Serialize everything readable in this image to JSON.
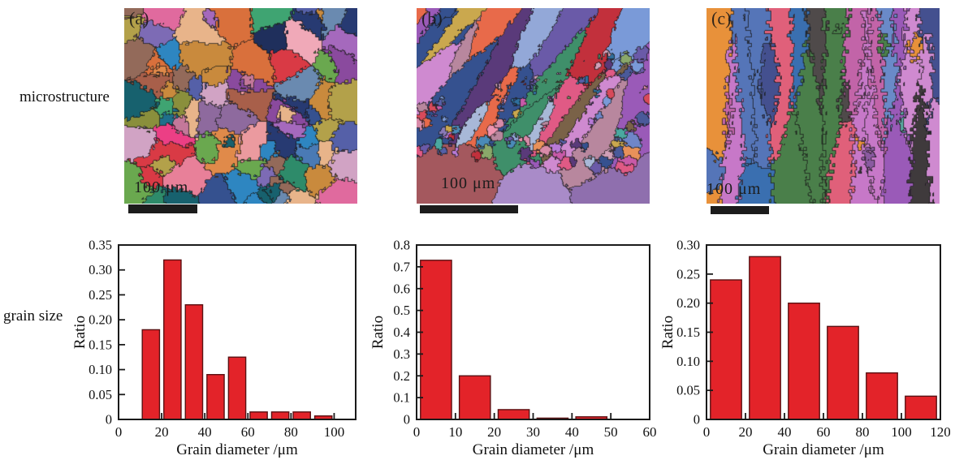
{
  "figure": {
    "row_labels": {
      "top": "microstructure",
      "bottom": "grain size"
    },
    "panels": [
      {
        "id": "a",
        "label": "(a)",
        "scale_text": "100 μm",
        "micrograph_style": "equiaxed"
      },
      {
        "id": "b",
        "label": "(b)",
        "scale_text": "100 μm",
        "micrograph_style": "bimodal-diagonal"
      },
      {
        "id": "c",
        "label": "(c)",
        "scale_text": "100 μm",
        "micrograph_style": "columnar"
      }
    ]
  },
  "colors": {
    "bar_fill": "#e32329",
    "bar_edge": "#5a1012",
    "axis": "#1a1a1a",
    "text": "#111111",
    "scale_bar": "#1c1c1c"
  },
  "palettes": {
    "a": [
      "#e06a9e",
      "#ec3f85",
      "#d93a45",
      "#c22431",
      "#e88099",
      "#eb9a9f",
      "#f0a9b8",
      "#b05a92",
      "#8a4a9e",
      "#a569bd",
      "#7d6bb5",
      "#5560a8",
      "#273a72",
      "#1f2f5c",
      "#35518f",
      "#4a7ab5",
      "#2e86c1",
      "#1f6f8b",
      "#17616e",
      "#2e8b6a",
      "#3fa472",
      "#6aa84f",
      "#8a8f3c",
      "#b3a14a",
      "#c98a3d",
      "#e08a4a",
      "#d9703c",
      "#a85f4a",
      "#936a5a",
      "#c4789a",
      "#8e6a9e",
      "#6a8ab0",
      "#d1a3c4",
      "#e8b48a"
    ],
    "b": [
      "#8a7ab8",
      "#6a5aa8",
      "#4a5a9a",
      "#35518f",
      "#7a9ad8",
      "#93a8d8",
      "#b87ad8",
      "#c85aa8",
      "#d84a5a",
      "#c2303c",
      "#e86a4a",
      "#e8915a",
      "#b8879e",
      "#d88aa8",
      "#ef94b0",
      "#5a3a7a",
      "#4a8ab8",
      "#2f6f9e",
      "#8aa86a",
      "#3f8f6a",
      "#caa84e",
      "#7a6248",
      "#a8b8d8",
      "#cf8ad0",
      "#5560a8",
      "#e05a85",
      "#6f86c9",
      "#9a5ab8",
      "#d0a0b8",
      "#4aa8a0"
    ],
    "c": [
      "#4f4a4a",
      "#3f3a3c",
      "#35996e",
      "#2e8b6a",
      "#c778c8",
      "#b858b0",
      "#cf8ad0",
      "#6a8ac8",
      "#5575b8",
      "#9a5ab8",
      "#b88ad0",
      "#c264a8",
      "#3a6fb0",
      "#2f8f5a",
      "#e8913a",
      "#44508f",
      "#59a8a0",
      "#4a7f4a",
      "#e0607a",
      "#8a5aa0"
    ]
  },
  "chart_data": [
    {
      "type": "bar",
      "panel": "a",
      "title": "",
      "xlabel": "Grain diameter /μm",
      "ylabel": "Ratio",
      "xlim": [
        0,
        110
      ],
      "ylim": [
        0,
        0.35
      ],
      "xticks": [
        0,
        20,
        40,
        60,
        80,
        100
      ],
      "xtick_labels": [
        "0",
        "20",
        "40",
        "60",
        "80",
        "100"
      ],
      "yticks": [
        0,
        0.05,
        0.1,
        0.15,
        0.2,
        0.25,
        0.3,
        0.35
      ],
      "ytick_labels": [
        "0",
        "0.05",
        "0.10",
        "0.15",
        "0.20",
        "0.25",
        "0.30",
        "0.35"
      ],
      "bin_width": 10,
      "bin_starts": [
        10,
        20,
        30,
        40,
        50,
        60,
        70,
        80,
        90
      ],
      "values": [
        0.18,
        0.32,
        0.23,
        0.09,
        0.125,
        0.015,
        0.015,
        0.015,
        0.007
      ],
      "grid": false,
      "legend": false
    },
    {
      "type": "bar",
      "panel": "b",
      "title": "",
      "xlabel": "Grain diameter /μm",
      "ylabel": "Ratio",
      "xlim": [
        0,
        60
      ],
      "ylim": [
        0,
        0.8
      ],
      "xticks": [
        0,
        10,
        20,
        30,
        40,
        50,
        60
      ],
      "xtick_labels": [
        "0",
        "10",
        "20",
        "30",
        "40",
        "50",
        "60"
      ],
      "yticks": [
        0,
        0.1,
        0.2,
        0.3,
        0.4,
        0.5,
        0.6,
        0.7,
        0.8
      ],
      "ytick_labels": [
        "0",
        "0.1",
        "0.2",
        "0.3",
        "0.4",
        "0.5",
        "0.6",
        "0.7",
        "0.8"
      ],
      "bin_width": 10,
      "bin_starts": [
        0,
        10,
        20,
        30,
        40
      ],
      "values": [
        0.73,
        0.2,
        0.045,
        0.006,
        0.012
      ],
      "grid": false,
      "legend": false
    },
    {
      "type": "bar",
      "panel": "c",
      "title": "",
      "xlabel": "Grain diameter /μm",
      "ylabel": "Ratio",
      "xlim": [
        0,
        120
      ],
      "ylim": [
        0,
        0.3
      ],
      "xticks": [
        0,
        20,
        40,
        60,
        80,
        100,
        120
      ],
      "xtick_labels": [
        "0",
        "20",
        "40",
        "60",
        "80",
        "100",
        "120"
      ],
      "yticks": [
        0,
        0.05,
        0.1,
        0.15,
        0.2,
        0.25,
        0.3
      ],
      "ytick_labels": [
        "0",
        "0.05",
        "0.10",
        "0.15",
        "0.20",
        "0.25",
        "0.30"
      ],
      "bin_width": 20,
      "bin_starts": [
        0,
        20,
        40,
        60,
        80,
        100
      ],
      "values": [
        0.24,
        0.28,
        0.2,
        0.16,
        0.08,
        0.04
      ],
      "grid": false,
      "legend": false
    }
  ]
}
